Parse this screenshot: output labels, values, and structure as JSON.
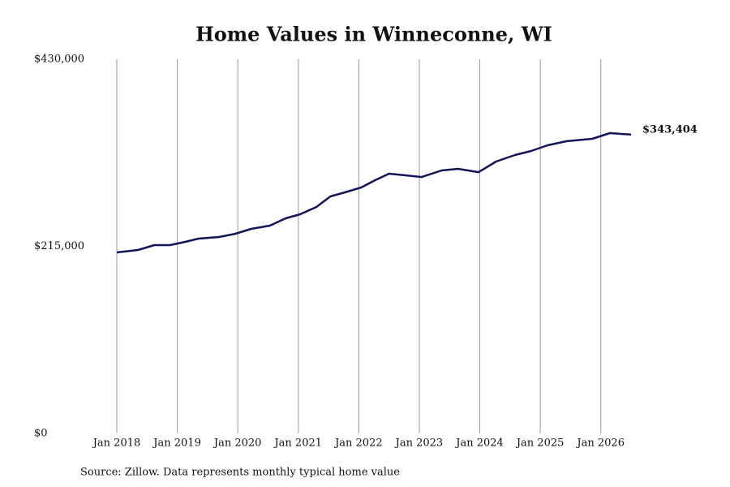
{
  "chart_data": {
    "type": "line",
    "title": "Home Values in Winneconne, WI",
    "source": "Source: Zillow. Data represents monthly typical home value",
    "x": [
      2018.0,
      2018.35,
      2018.62,
      2018.88,
      2019.13,
      2019.35,
      2019.69,
      2019.96,
      2020.22,
      2020.53,
      2020.79,
      2021.03,
      2021.3,
      2021.53,
      2021.77,
      2022.04,
      2022.27,
      2022.5,
      2022.77,
      2023.04,
      2023.37,
      2023.64,
      2023.98,
      2024.27,
      2024.58,
      2024.85,
      2025.12,
      2025.43,
      2025.86,
      2026.15,
      2026.5
    ],
    "series": [
      {
        "name": "Typical home value",
        "color": "#14145a",
        "values": [
          208000,
          210800,
          216400,
          216400,
          220100,
          223900,
          225700,
          229500,
          235100,
          238800,
          247200,
          251800,
          260200,
          272400,
          277000,
          282600,
          291000,
          298500,
          296600,
          294700,
          302200,
          304100,
          300300,
          312500,
          319900,
          324600,
          331100,
          335800,
          338600,
          345100,
          343404
        ],
        "end_label": {
          "value": 343404,
          "label": "$343,404"
        }
      }
    ],
    "xlim": [
      2018,
      2026.5
    ],
    "xticks": [
      {
        "value": 2018,
        "label": "Jan 2018"
      },
      {
        "value": 2019,
        "label": "Jan 2019"
      },
      {
        "value": 2020,
        "label": "Jan 2020"
      },
      {
        "value": 2021,
        "label": "Jan 2021"
      },
      {
        "value": 2022,
        "label": "Jan 2022"
      },
      {
        "value": 2023,
        "label": "Jan 2023"
      },
      {
        "value": 2024,
        "label": "Jan 2024"
      },
      {
        "value": 2025,
        "label": "Jan 2025"
      },
      {
        "value": 2026,
        "label": "Jan 2026"
      }
    ],
    "ylim": [
      0,
      430000
    ],
    "yticks": [
      {
        "value": 0,
        "label": "$0"
      },
      {
        "value": 215000,
        "label": "$215,000"
      },
      {
        "value": 430000,
        "label": "$430,000"
      }
    ],
    "grid": true
  }
}
